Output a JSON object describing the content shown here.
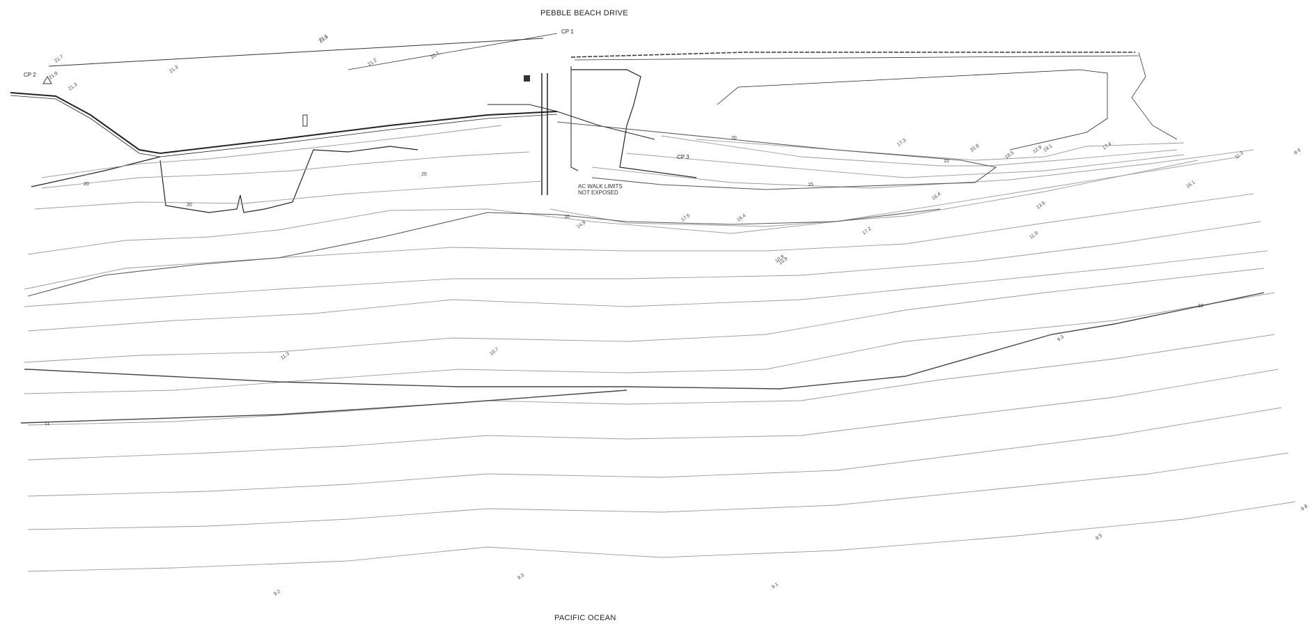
{
  "road_label": "PEBBLE BEACH DRIVE",
  "ocean_label": "PACIFIC OCEAN",
  "note": {
    "line1": "AC WALK LIMITS",
    "line2": "NOT EXPOSED"
  },
  "control_points": [
    "CP 1",
    "CP 2",
    "CP 3"
  ],
  "major_contour_labels": [
    "20",
    "20",
    "20",
    "20",
    "15",
    "15",
    "10",
    "10",
    "11"
  ],
  "spot_elevations": [
    "21.9",
    "21.3",
    "21.7",
    "21.5",
    "21.3",
    "21.2",
    "20.7",
    "21.1",
    "17.3",
    "10.9",
    "9.3",
    "12.9",
    "20.8",
    "18.5",
    "19.1",
    "17.4",
    "16.1",
    "11.3",
    "10.7",
    "11.3",
    "10.9",
    "11.9",
    "13.6",
    "9.9",
    "9.2",
    "9.3",
    "9.1",
    "9.5",
    "9.8",
    "16.4",
    "14.9",
    "17.5",
    "16.4",
    "17.2"
  ],
  "colors": {
    "linework": "#333333",
    "contour": "#9a9a9a",
    "major_contour": "#444444",
    "background": "#ffffff"
  }
}
